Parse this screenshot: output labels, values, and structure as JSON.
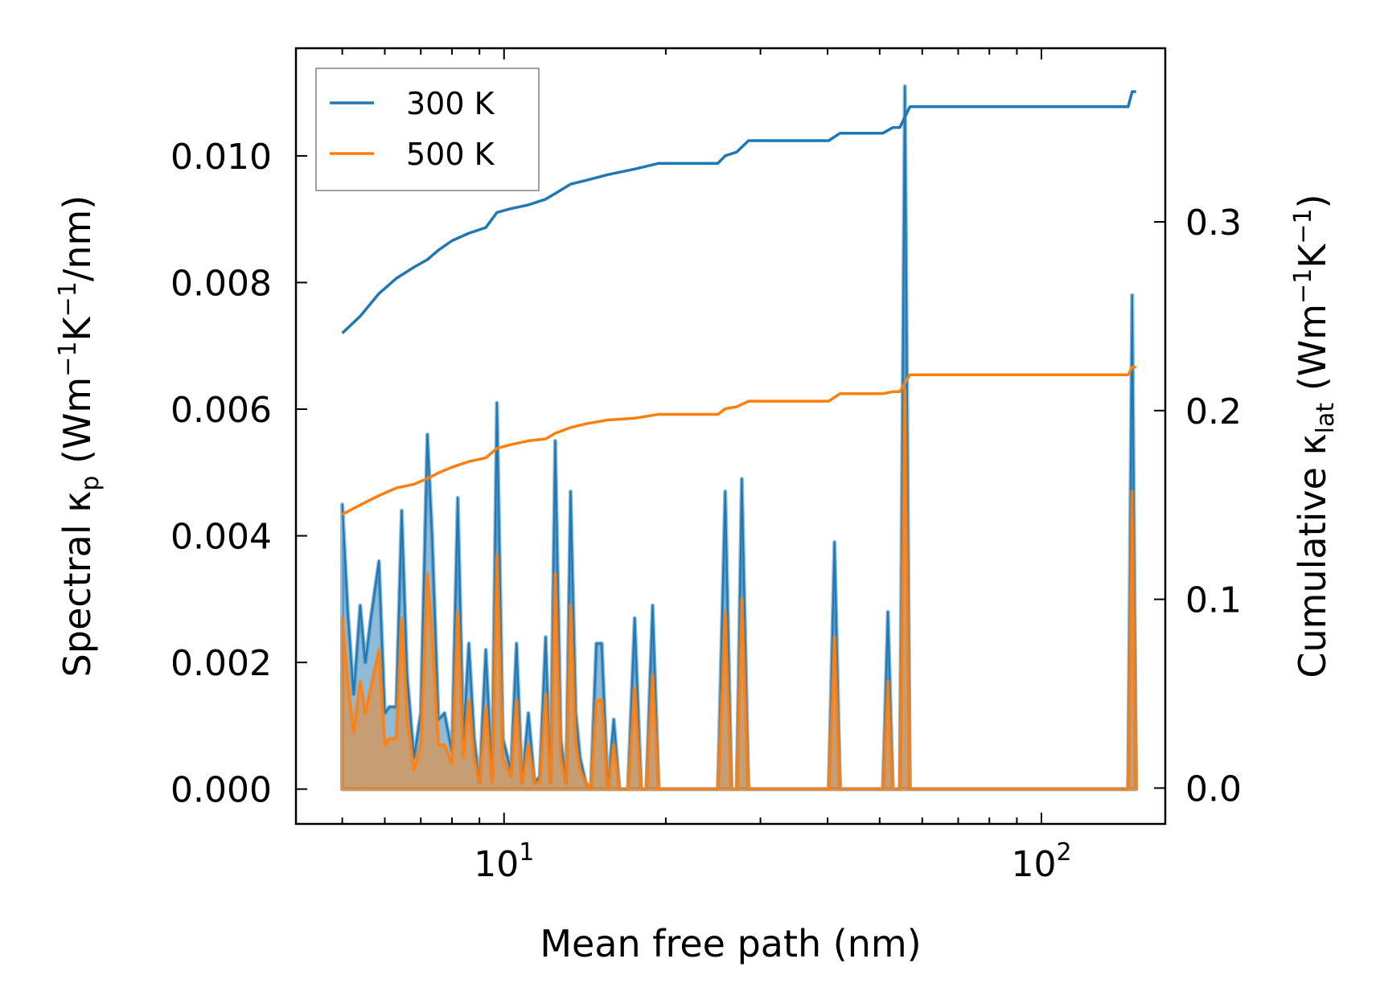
{
  "chart_data": {
    "type": "line",
    "x_scale": "log",
    "xlim": [
      4.1,
      170
    ],
    "ylim_left": [
      -0.00055,
      0.0117
    ],
    "ylim_right": [
      -0.019,
      0.392
    ],
    "xlabel": "Mean free path (nm)",
    "ylabel_left": {
      "prefix": "Spectral κ",
      "sub": "p",
      "mid1": " (Wm",
      "sup1": "−1",
      "mid2": "K",
      "sup2": "−1",
      "suffix": "/nm)"
    },
    "ylabel_right": {
      "prefix": "Cumulative κ",
      "sub": "lat",
      "mid1": " (Wm",
      "sup1": "−1",
      "mid2": "K",
      "sup2": "−1",
      "suffix": ")"
    },
    "x_ticks": [
      {
        "value": 10,
        "base": "10",
        "exp": "1"
      },
      {
        "value": 100,
        "base": "10",
        "exp": "2"
      }
    ],
    "left_ticks": [
      {
        "value": 0.0,
        "label": "0.000"
      },
      {
        "value": 0.002,
        "label": "0.002"
      },
      {
        "value": 0.004,
        "label": "0.004"
      },
      {
        "value": 0.006,
        "label": "0.006"
      },
      {
        "value": 0.008,
        "label": "0.008"
      },
      {
        "value": 0.01,
        "label": "0.010"
      }
    ],
    "right_ticks": [
      {
        "value": 0.0,
        "label": "0.0"
      },
      {
        "value": 0.1,
        "label": "0.1"
      },
      {
        "value": 0.2,
        "label": "0.2"
      },
      {
        "value": 0.3,
        "label": "0.3"
      }
    ],
    "legend": {
      "position": "upper-left"
    },
    "series": [
      {
        "name": "300 K",
        "color": "#1f77b4",
        "spectral_axis": "left",
        "cumulative_axis": "right",
        "spectral": [
          [
            5.0,
            0.0045
          ],
          [
            5.12,
            0.0028
          ],
          [
            5.25,
            0.0015
          ],
          [
            5.4,
            0.0029
          ],
          [
            5.52,
            0.002
          ],
          [
            5.65,
            0.0027
          ],
          [
            5.85,
            0.0036
          ],
          [
            6.0,
            0.0012
          ],
          [
            6.12,
            0.0013
          ],
          [
            6.3,
            0.0013
          ],
          [
            6.45,
            0.0044
          ],
          [
            6.6,
            0.0018
          ],
          [
            6.8,
            0.0005
          ],
          [
            7.0,
            0.0012
          ],
          [
            7.2,
            0.0056
          ],
          [
            7.35,
            0.004
          ],
          [
            7.55,
            0.0011
          ],
          [
            7.75,
            0.0012
          ],
          [
            8.0,
            0.0006
          ],
          [
            8.2,
            0.0046
          ],
          [
            8.4,
            0.0008
          ],
          [
            8.6,
            0.0023
          ],
          [
            8.8,
            0.0008
          ],
          [
            9.0,
            0.0001
          ],
          [
            9.25,
            0.0022
          ],
          [
            9.5,
            0.0002
          ],
          [
            9.7,
            0.0061
          ],
          [
            9.95,
            0.0008
          ],
          [
            10.3,
            0.0003
          ],
          [
            10.55,
            0.0023
          ],
          [
            10.8,
            0.0001
          ],
          [
            11.1,
            0.0012
          ],
          [
            11.4,
            0.0001
          ],
          [
            11.65,
            0.0002
          ],
          [
            11.95,
            0.0024
          ],
          [
            12.2,
            0.0001
          ],
          [
            12.45,
            0.0055
          ],
          [
            12.75,
            0.0008
          ],
          [
            13.05,
            0.0001
          ],
          [
            13.3,
            0.0047
          ],
          [
            13.6,
            0.0012
          ],
          [
            13.85,
            0.0005
          ],
          [
            14.2,
            0.0001
          ],
          [
            14.5,
            0.0
          ],
          [
            14.85,
            0.0023
          ],
          [
            15.2,
            0.0023
          ],
          [
            15.6,
            0.0
          ],
          [
            16.0,
            0.0011
          ],
          [
            16.4,
            0.0
          ],
          [
            17.0,
            0.0
          ],
          [
            17.5,
            0.0027
          ],
          [
            18.0,
            0.0
          ],
          [
            18.4,
            0.0
          ],
          [
            18.9,
            0.0029
          ],
          [
            19.4,
            0.0
          ],
          [
            25.0,
            0.0
          ],
          [
            25.8,
            0.0047
          ],
          [
            26.5,
            0.0
          ],
          [
            27.1,
            0.0
          ],
          [
            27.7,
            0.0049
          ],
          [
            28.5,
            0.0
          ],
          [
            40.2,
            0.0
          ],
          [
            41.2,
            0.0039
          ],
          [
            42.2,
            0.0
          ],
          [
            50.7,
            0.0
          ],
          [
            51.8,
            0.0028
          ],
          [
            52.9,
            0.0
          ],
          [
            54.5,
            0.0
          ],
          [
            55.7,
            0.0111
          ],
          [
            56.9,
            0.0
          ],
          [
            145.0,
            0.0
          ],
          [
            147.5,
            0.0078
          ],
          [
            150.0,
            0.0
          ]
        ],
        "cumulative": [
          [
            5.0,
            0.241
          ],
          [
            5.4,
            0.25
          ],
          [
            5.85,
            0.262
          ],
          [
            6.3,
            0.27
          ],
          [
            6.8,
            0.276
          ],
          [
            7.2,
            0.28
          ],
          [
            7.55,
            0.285
          ],
          [
            8.0,
            0.29
          ],
          [
            8.6,
            0.294
          ],
          [
            9.25,
            0.297
          ],
          [
            9.7,
            0.305
          ],
          [
            10.3,
            0.307
          ],
          [
            11.1,
            0.309
          ],
          [
            11.95,
            0.312
          ],
          [
            12.45,
            0.315
          ],
          [
            13.3,
            0.32
          ],
          [
            14.2,
            0.322
          ],
          [
            15.6,
            0.325
          ],
          [
            17.5,
            0.328
          ],
          [
            19.4,
            0.331
          ],
          [
            25.0,
            0.331
          ],
          [
            25.8,
            0.335
          ],
          [
            27.1,
            0.337
          ],
          [
            28.5,
            0.343
          ],
          [
            40.2,
            0.343
          ],
          [
            42.2,
            0.347
          ],
          [
            50.7,
            0.347
          ],
          [
            52.9,
            0.35
          ],
          [
            54.5,
            0.35
          ],
          [
            56.9,
            0.361
          ],
          [
            145.0,
            0.361
          ],
          [
            147.5,
            0.369
          ],
          [
            150.0,
            0.369
          ]
        ]
      },
      {
        "name": "500 K",
        "color": "#ff7f0e",
        "spectral_axis": "left",
        "cumulative_axis": "right",
        "spectral": [
          [
            5.0,
            0.0027
          ],
          [
            5.12,
            0.0017
          ],
          [
            5.25,
            0.0009
          ],
          [
            5.4,
            0.0017
          ],
          [
            5.52,
            0.0012
          ],
          [
            5.65,
            0.0016
          ],
          [
            5.85,
            0.0022
          ],
          [
            6.0,
            0.0007
          ],
          [
            6.12,
            0.0008
          ],
          [
            6.3,
            0.0008
          ],
          [
            6.45,
            0.0027
          ],
          [
            6.6,
            0.0011
          ],
          [
            6.8,
            0.0003
          ],
          [
            7.0,
            0.0007
          ],
          [
            7.2,
            0.0034
          ],
          [
            7.35,
            0.0024
          ],
          [
            7.55,
            0.0007
          ],
          [
            7.75,
            0.0007
          ],
          [
            8.0,
            0.0004
          ],
          [
            8.2,
            0.0028
          ],
          [
            8.4,
            0.0005
          ],
          [
            8.6,
            0.0014
          ],
          [
            8.8,
            0.0005
          ],
          [
            9.0,
            0.0001
          ],
          [
            9.25,
            0.0013
          ],
          [
            9.5,
            0.0001
          ],
          [
            9.7,
            0.0037
          ],
          [
            9.95,
            0.0005
          ],
          [
            10.3,
            0.0002
          ],
          [
            10.55,
            0.0014
          ],
          [
            10.8,
            0.0001
          ],
          [
            11.1,
            0.0007
          ],
          [
            11.4,
            0.0001
          ],
          [
            11.65,
            0.0001
          ],
          [
            11.95,
            0.0015
          ],
          [
            12.2,
            0.0001
          ],
          [
            12.45,
            0.0034
          ],
          [
            12.75,
            0.0005
          ],
          [
            13.05,
            0.0001
          ],
          [
            13.3,
            0.0029
          ],
          [
            13.6,
            0.0007
          ],
          [
            13.85,
            0.0003
          ],
          [
            14.2,
            0.0001
          ],
          [
            14.5,
            0.0
          ],
          [
            14.85,
            0.0014
          ],
          [
            15.2,
            0.0014
          ],
          [
            15.6,
            0.0
          ],
          [
            16.0,
            0.0007
          ],
          [
            16.4,
            0.0
          ],
          [
            17.0,
            0.0
          ],
          [
            17.5,
            0.0016
          ],
          [
            18.0,
            0.0
          ],
          [
            18.4,
            0.0
          ],
          [
            18.9,
            0.0018
          ],
          [
            19.4,
            0.0
          ],
          [
            25.0,
            0.0
          ],
          [
            25.8,
            0.0028
          ],
          [
            26.5,
            0.0
          ],
          [
            27.1,
            0.0
          ],
          [
            27.7,
            0.003
          ],
          [
            28.5,
            0.0
          ],
          [
            40.2,
            0.0
          ],
          [
            41.2,
            0.0024
          ],
          [
            42.2,
            0.0
          ],
          [
            50.7,
            0.0
          ],
          [
            51.8,
            0.0017
          ],
          [
            52.9,
            0.0
          ],
          [
            54.5,
            0.0
          ],
          [
            55.7,
            0.0063
          ],
          [
            56.9,
            0.0
          ],
          [
            145.0,
            0.0
          ],
          [
            147.5,
            0.0047
          ],
          [
            150.0,
            0.0
          ]
        ],
        "cumulative": [
          [
            5.0,
            0.145
          ],
          [
            5.4,
            0.15
          ],
          [
            5.85,
            0.155
          ],
          [
            6.3,
            0.159
          ],
          [
            6.8,
            0.161
          ],
          [
            7.2,
            0.164
          ],
          [
            7.55,
            0.167
          ],
          [
            8.0,
            0.17
          ],
          [
            8.6,
            0.173
          ],
          [
            9.25,
            0.175
          ],
          [
            9.7,
            0.18
          ],
          [
            10.3,
            0.182
          ],
          [
            11.1,
            0.184
          ],
          [
            11.95,
            0.185
          ],
          [
            12.45,
            0.188
          ],
          [
            13.3,
            0.191
          ],
          [
            14.2,
            0.193
          ],
          [
            15.6,
            0.195
          ],
          [
            17.5,
            0.196
          ],
          [
            19.4,
            0.198
          ],
          [
            25.0,
            0.198
          ],
          [
            25.8,
            0.201
          ],
          [
            27.1,
            0.202
          ],
          [
            28.5,
            0.205
          ],
          [
            40.2,
            0.205
          ],
          [
            42.2,
            0.209
          ],
          [
            50.7,
            0.209
          ],
          [
            52.9,
            0.21
          ],
          [
            54.5,
            0.21
          ],
          [
            56.9,
            0.219
          ],
          [
            145.0,
            0.219
          ],
          [
            147.5,
            0.223
          ],
          [
            150.0,
            0.223
          ]
        ]
      }
    ]
  }
}
